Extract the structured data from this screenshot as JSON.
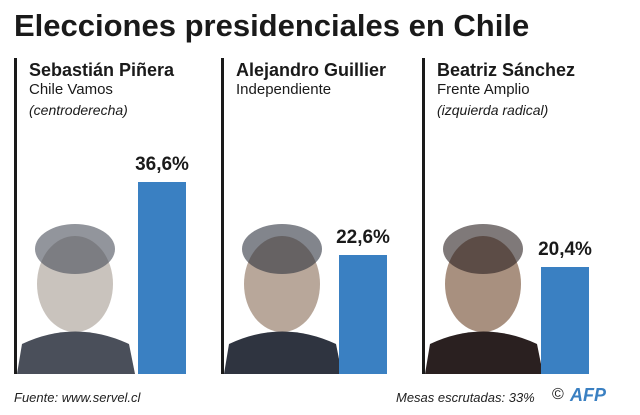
{
  "title": "Elecciones presidenciales en Chile",
  "chart_data": {
    "type": "bar",
    "title": "Elecciones presidenciales en Chile",
    "categories": [
      "Sebastián Piñera",
      "Alejandro Guillier",
      "Beatriz Sánchez"
    ],
    "values": [
      36.6,
      22.6,
      20.4
    ],
    "data_labels": [
      "36,6%",
      "22,6%",
      "20,4%"
    ],
    "bar_color": "#3a80c2",
    "candidates": [
      {
        "name": "Sebastián Piñera",
        "party": "Chile Vamos",
        "ideology": "(centroderecha)",
        "value": 36.6,
        "label": "36,6%"
      },
      {
        "name": "Alejandro Guillier",
        "party": "Independiente",
        "ideology": "",
        "value": 22.6,
        "label": "22,6%"
      },
      {
        "name": "Beatriz Sánchez",
        "party": "Frente Amplio",
        "ideology": "(izquierda radical)",
        "value": 20.4,
        "label": "20,4%"
      }
    ]
  },
  "footer": {
    "source": "Fuente: www.servel.cl",
    "counted": "Mesas escrutadas: 33%",
    "copyright": "©",
    "logo": "AFP"
  }
}
